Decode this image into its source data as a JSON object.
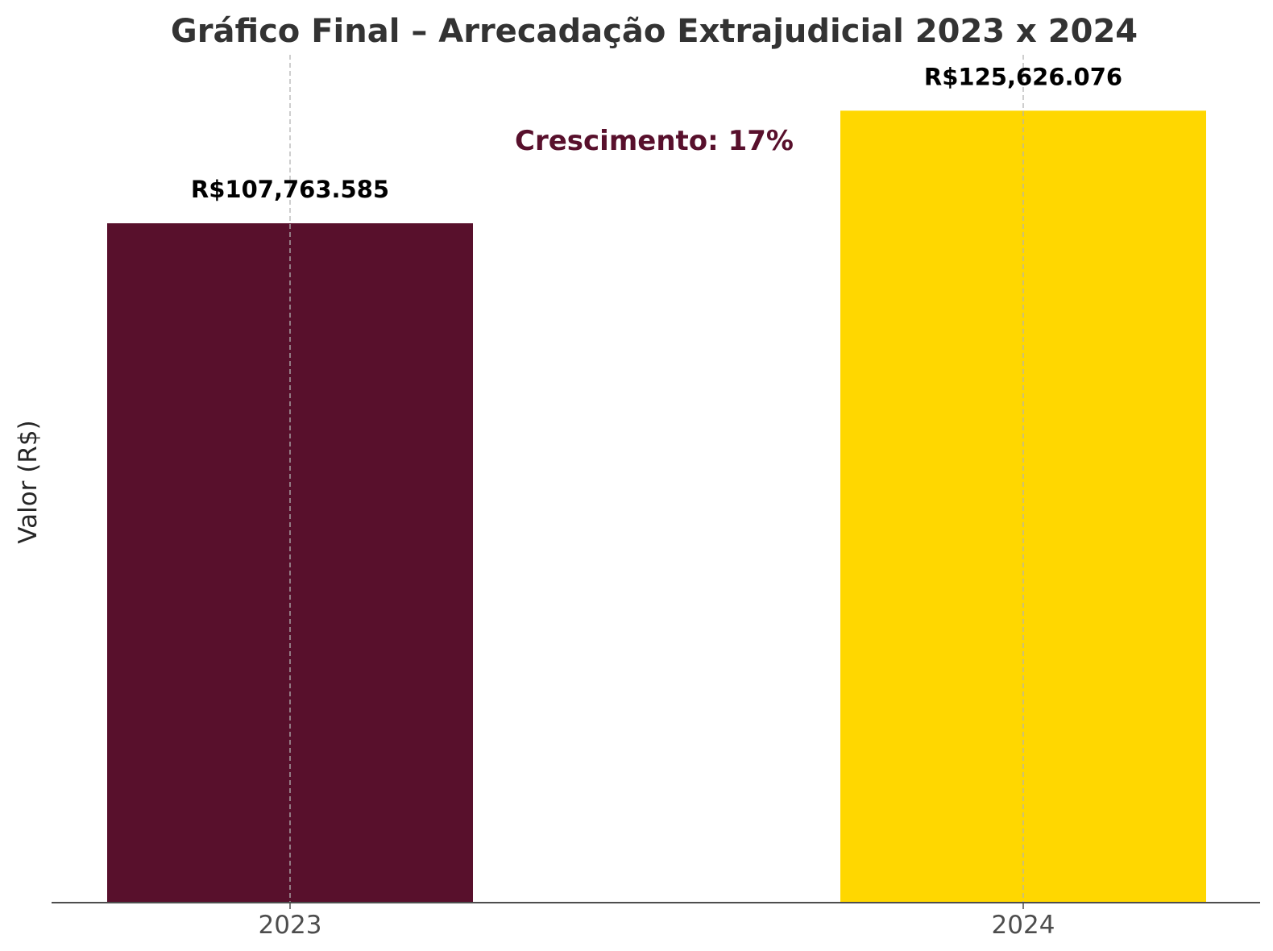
{
  "chart_data": {
    "type": "bar",
    "title": "Gráfico Final – Arrecadação Extrajudicial 2023 x 2024",
    "xlabel": "",
    "ylabel": "Valor (R$)",
    "categories": [
      "2023",
      "2024"
    ],
    "values": [
      107763585,
      125626076
    ],
    "value_labels": [
      "R$107,763.585",
      "R$125,626.076"
    ],
    "bar_colors": [
      "#58102c",
      "#ffd700"
    ],
    "annotation": "Crescimento: 17%",
    "annotation_color": "#58102c",
    "title_color": "#333333",
    "ylim": [
      0,
      135000000
    ],
    "grid": "vertical dashed",
    "y_ticks_shown": false
  }
}
